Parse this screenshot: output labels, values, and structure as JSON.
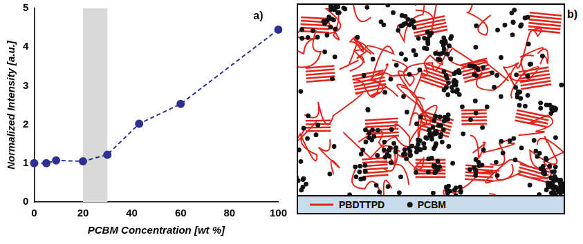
{
  "chart_data": {
    "type": "line",
    "panel_label": "a)",
    "x_label": "PCBM Concentration [wt %]",
    "y_label": "Normalized Intensity [a.u.]",
    "x": [
      0,
      5,
      9,
      20,
      30,
      43,
      60,
      100
    ],
    "values": [
      1.0,
      1.0,
      1.07,
      1.05,
      1.22,
      2.02,
      2.53,
      4.45
    ],
    "color": "#2e3192",
    "marker": "circle",
    "line_style": "dashed",
    "highlight": [
      20,
      30
    ],
    "xlim": [
      0,
      100
    ],
    "xticks": [
      0,
      20,
      40,
      60,
      80,
      100
    ],
    "ylim": [
      0,
      5
    ],
    "yticks": [
      0,
      1,
      2,
      3,
      4,
      5
    ],
    "grid": false
  },
  "diagram": {
    "panel_label": "b)",
    "legend": [
      {
        "name": "PBDTTPD",
        "color": "#e3261d",
        "marker": "line"
      },
      {
        "name": "PCBM",
        "color": "#111111",
        "marker": "dot"
      }
    ]
  }
}
